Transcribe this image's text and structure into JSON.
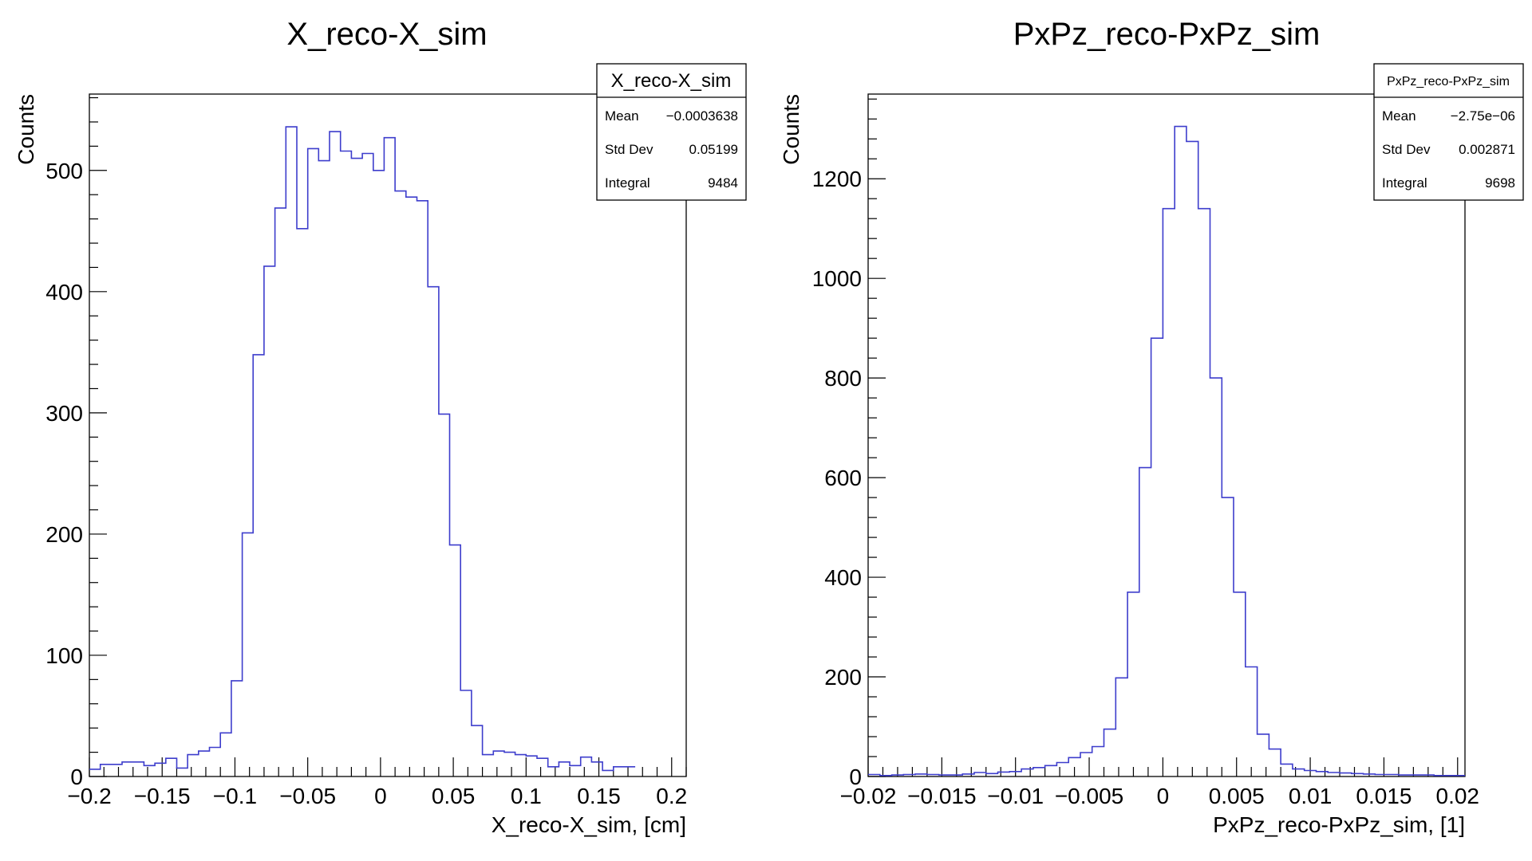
{
  "chart_data": [
    {
      "type": "bar",
      "title": "X_reco-X_sim",
      "xlabel": "X_reco-X_sim, [cm]",
      "ylabel": "Counts",
      "xlim": [
        -0.2,
        0.21
      ],
      "ylim": [
        0,
        563
      ],
      "xticks": [
        "−0.2",
        "−0.15",
        "−0.1",
        "−0.05",
        "0",
        "0.05",
        "0.1",
        "0.15",
        "0.2"
      ],
      "xtick_values": [
        -0.2,
        -0.15,
        -0.1,
        -0.05,
        0,
        0.05,
        0.1,
        0.15,
        0.2
      ],
      "yticks": [
        "0",
        "100",
        "200",
        "300",
        "400",
        "500"
      ],
      "ytick_values": [
        0,
        100,
        200,
        300,
        400,
        500
      ],
      "bin_edges_start": -0.2,
      "bin_width": 0.0075,
      "values": [
        6,
        10,
        10,
        12,
        12,
        9,
        11,
        15,
        7,
        18,
        21,
        24,
        36,
        79,
        201,
        348,
        421,
        469,
        536,
        452,
        518,
        508,
        532,
        516,
        510,
        514,
        500,
        527,
        483,
        478,
        475,
        404,
        299,
        191,
        71,
        42,
        18,
        21,
        20,
        18,
        17,
        15,
        8,
        12,
        9,
        16,
        12,
        5,
        8,
        8
      ],
      "stats": {
        "name": "X_reco-X_sim",
        "rows": [
          {
            "label": "Mean",
            "value": "−0.0003638"
          },
          {
            "label": "Std Dev",
            "value": "0.05199"
          },
          {
            "label": "Integral",
            "value": "9484"
          }
        ]
      },
      "line_color": "#3d3dcc"
    },
    {
      "type": "bar",
      "title": "PxPz_reco-PxPz_sim",
      "xlabel": "PxPz_reco-PxPz_sim, [1]",
      "ylabel": "Counts",
      "xlim": [
        -0.02,
        0.0205
      ],
      "ylim": [
        0,
        1370
      ],
      "xticks": [
        "−0.02",
        "−0.015",
        "−0.01",
        "−0.005",
        "0",
        "0.005",
        "0.01",
        "0.015",
        "0.02"
      ],
      "xtick_values": [
        -0.02,
        -0.015,
        -0.01,
        -0.005,
        0,
        0.005,
        0.01,
        0.015,
        0.02
      ],
      "yticks": [
        "0",
        "200",
        "400",
        "600",
        "800",
        "1000",
        "1200"
      ],
      "ytick_values": [
        0,
        200,
        400,
        600,
        800,
        1000,
        1200
      ],
      "bin_edges_start": -0.02,
      "bin_width": 0.0008,
      "values": [
        4,
        2,
        3,
        4,
        5,
        4,
        3,
        3,
        5,
        8,
        6,
        9,
        10,
        15,
        18,
        22,
        28,
        38,
        48,
        60,
        95,
        198,
        370,
        620,
        880,
        1140,
        1305,
        1275,
        1140,
        800,
        560,
        370,
        220,
        85,
        55,
        25,
        15,
        12,
        10,
        8,
        7,
        6,
        5,
        4,
        4,
        3,
        3,
        3,
        2,
        2,
        2
      ],
      "stats": {
        "name": "PxPz_reco-PxPz_sim",
        "rows": [
          {
            "label": "Mean",
            "value": "−2.75e−06"
          },
          {
            "label": "Std Dev",
            "value": "0.002871"
          },
          {
            "label": "Integral",
            "value": "9698"
          }
        ]
      },
      "line_color": "#3d3dcc"
    }
  ]
}
